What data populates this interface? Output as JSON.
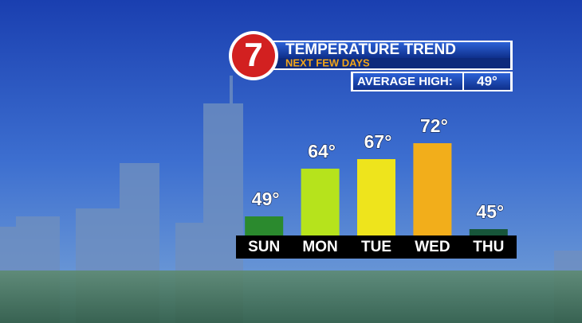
{
  "chart_data": {
    "type": "bar",
    "logo": "7",
    "title": "TEMPERATURE TREND",
    "subtitle": "NEXT FEW DAYS",
    "average_label": "AVERAGE HIGH:",
    "average_value": "49°",
    "categories": [
      "SUN",
      "MON",
      "TUE",
      "WED",
      "THU"
    ],
    "values": [
      49,
      64,
      67,
      72,
      45
    ],
    "value_labels": [
      "49°",
      "64°",
      "67°",
      "72°",
      "45°"
    ],
    "colors": [
      "#2b8a2e",
      "#b6e31c",
      "#eee41c",
      "#f2ae1b",
      "#17563a"
    ]
  }
}
